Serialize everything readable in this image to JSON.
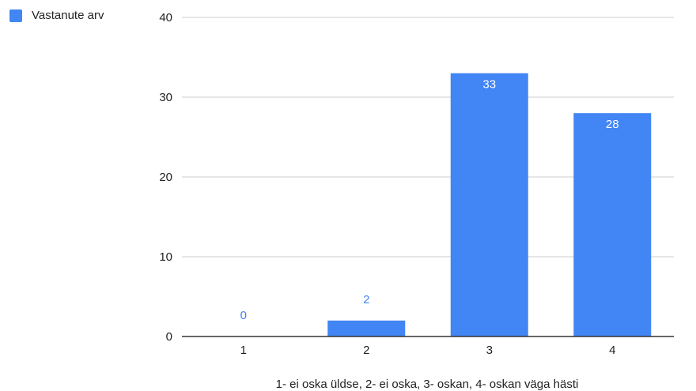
{
  "chart_data": {
    "type": "bar",
    "categories": [
      "1",
      "2",
      "3",
      "4"
    ],
    "series": [
      {
        "name": "Vastanute arv",
        "values": [
          0,
          2,
          33,
          28
        ]
      }
    ],
    "data_labels": [
      "0",
      "2",
      "33",
      "28"
    ],
    "y_ticks": [
      "0",
      "10",
      "20",
      "30",
      "40"
    ],
    "ylim": [
      0,
      40
    ],
    "xlabel": "1- ei oska üldse, 2- ei oska, 3- oskan, 4- oskan väga hästi",
    "ylabel": "",
    "title": "",
    "legend_position": "top-left",
    "grid": true,
    "colors": {
      "bar": "#4285f4",
      "label_inside": "#ffffff",
      "label_outside": "#4285f4",
      "grid": "#cccccc",
      "axis": "#333333"
    }
  }
}
